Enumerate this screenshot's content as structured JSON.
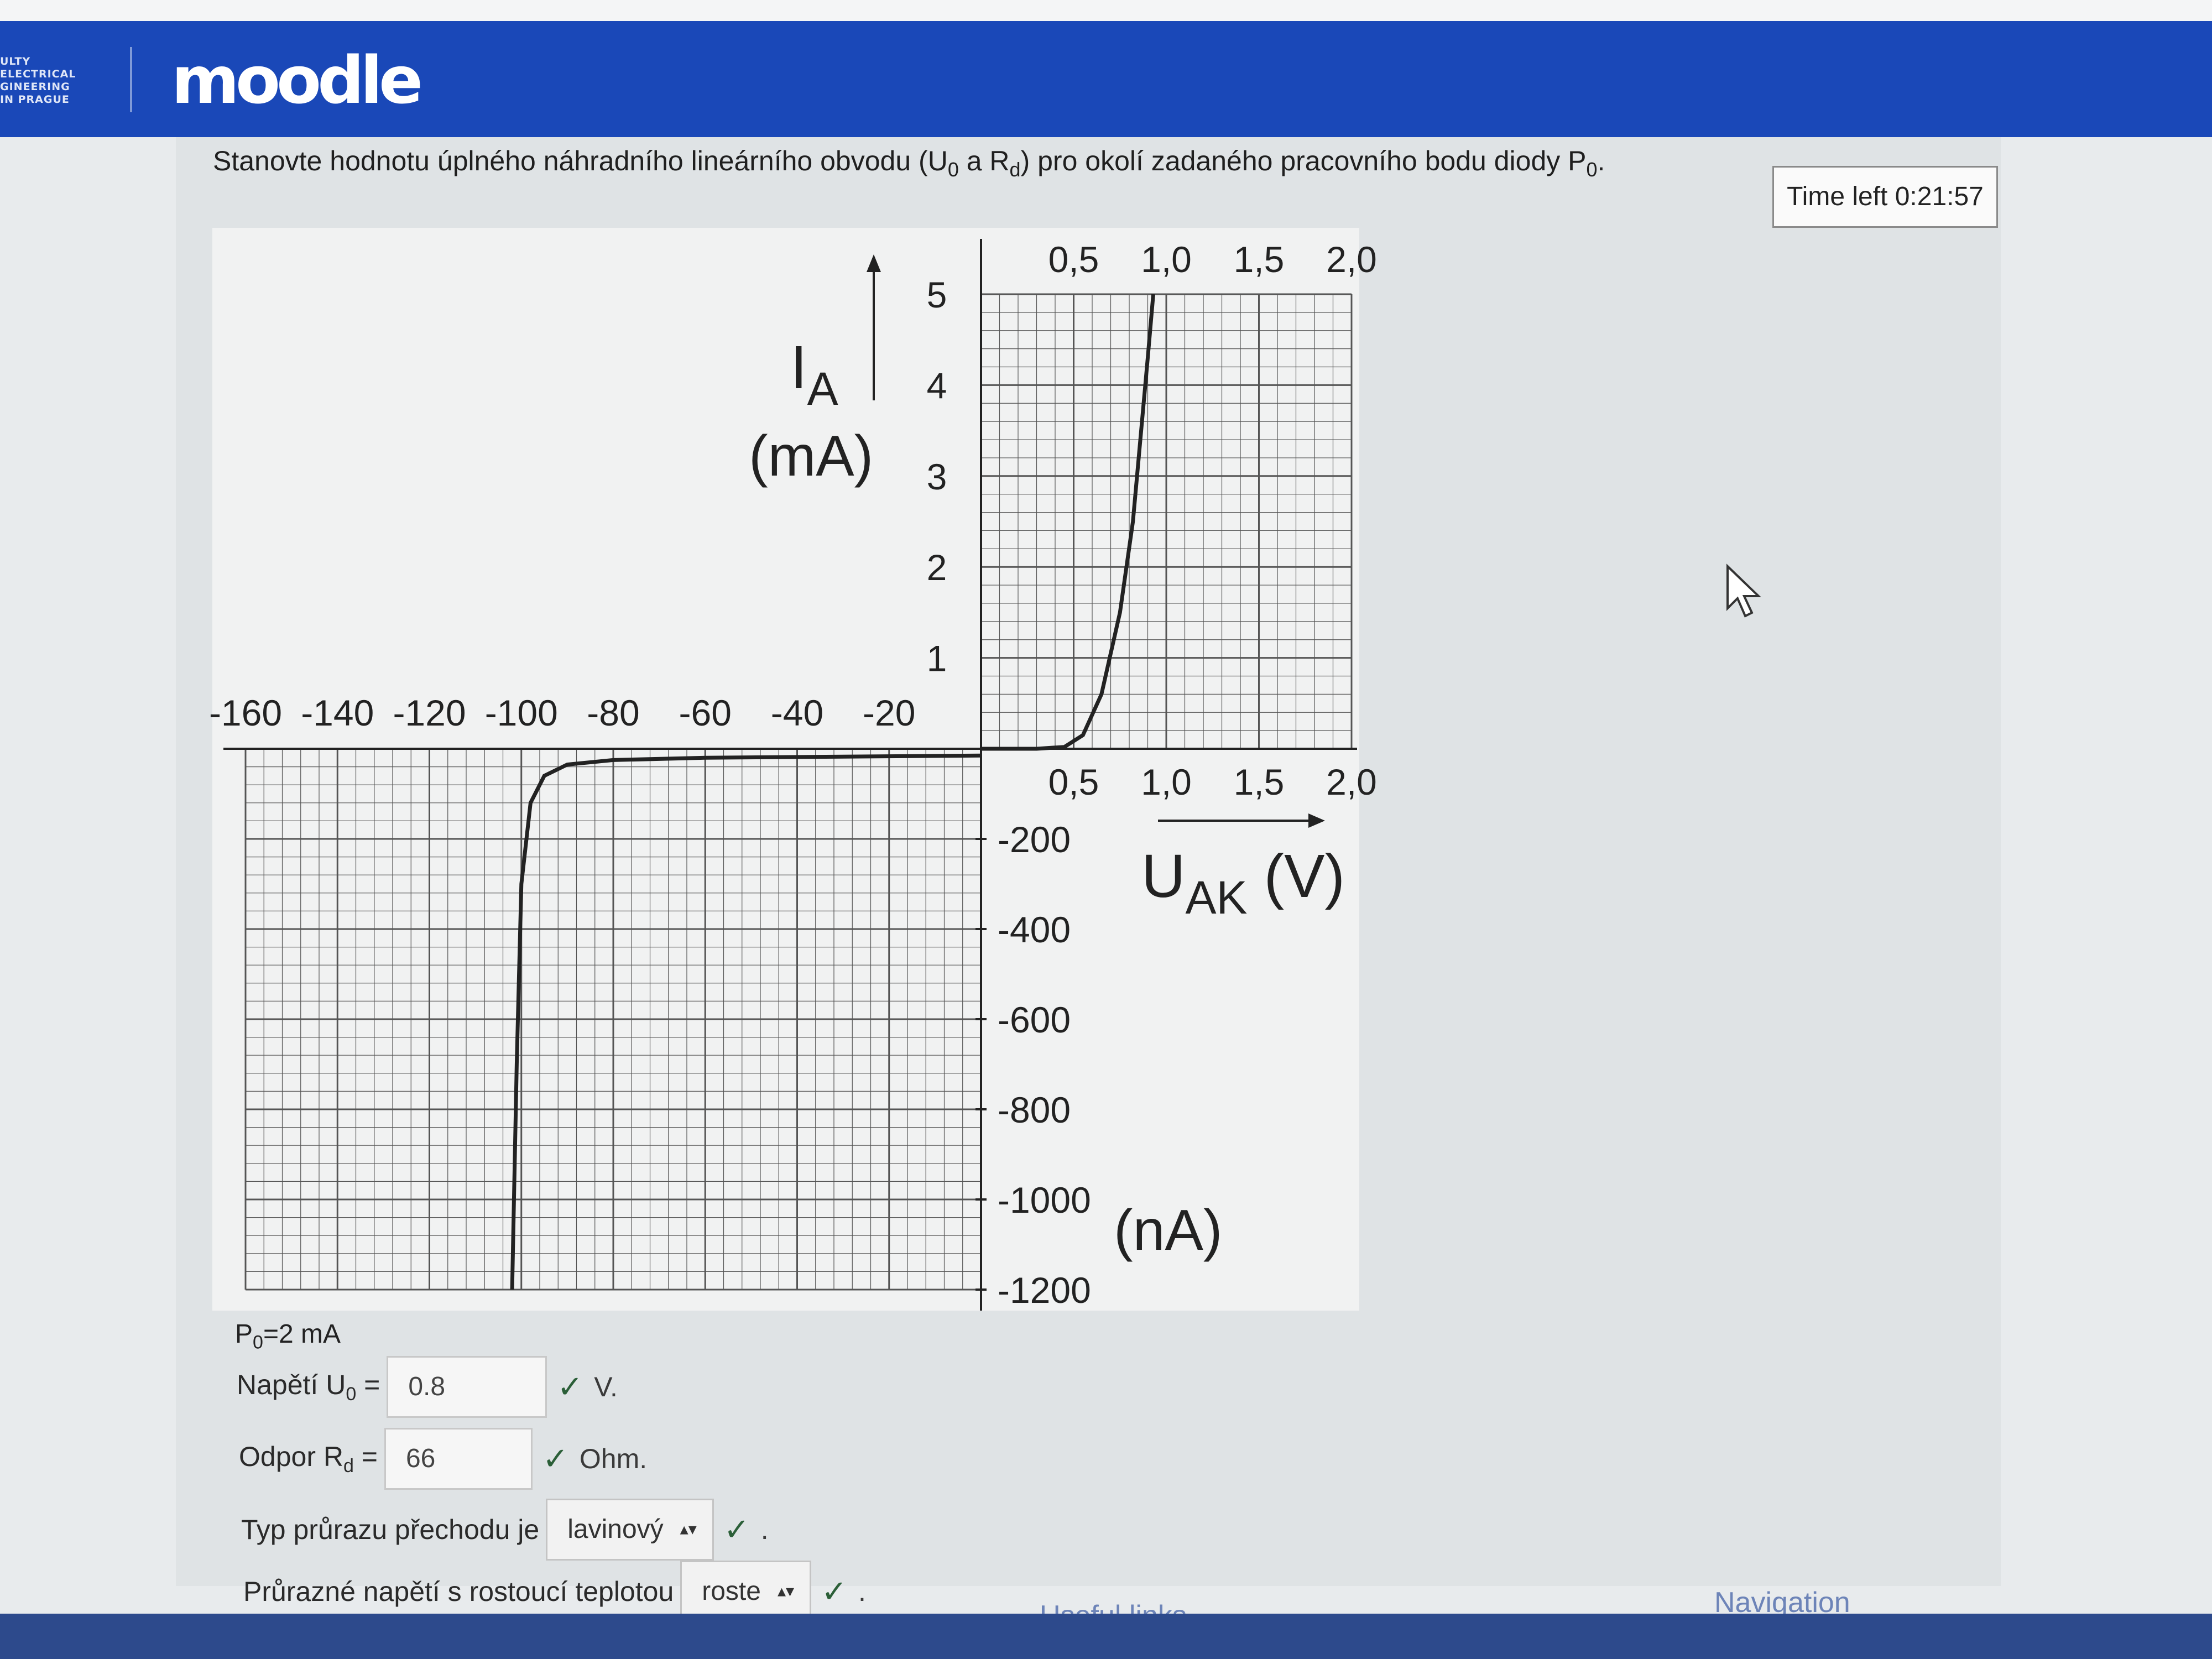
{
  "header": {
    "faculty_lines": [
      "ULTY",
      "ELECTRICAL",
      "GINEERING",
      "IN PRAGUE"
    ],
    "logo_text": "moodle"
  },
  "question": {
    "text_main": "Stanovte hodnotu úplného náhradního lineárního obvodu (U",
    "u_sub": "0",
    "text_mid": " a R",
    "r_sub": "d",
    "text_end": ") pro okolí zadaného pracovního bodu diody P",
    "p_sub": "0",
    "text_tail": "."
  },
  "timer": {
    "label": "Time left 0:21:57"
  },
  "chart_data": {
    "type": "line",
    "title": "",
    "y_label_forward_main": "I",
    "y_label_forward_sub": "A",
    "y_label_forward_unit": "(mA)",
    "y_label_reverse_unit": "(nA)",
    "x_label_main": "U",
    "x_label_sub": "AK",
    "x_label_unit": "(V)",
    "forward_x_ticks": [
      "0,5",
      "1,0",
      "1,5",
      "2,0"
    ],
    "forward_y_ticks": [
      "1",
      "2",
      "3",
      "4",
      "5"
    ],
    "reverse_x_ticks": [
      "-160",
      "-140",
      "-120",
      "-100",
      "-80",
      "-60",
      "-40",
      "-20"
    ],
    "reverse_y_ticks": [
      "-200",
      "-400",
      "-600",
      "-800",
      "-1000",
      "-1200"
    ],
    "forward_xlim": [
      0,
      2.0
    ],
    "forward_ylim": [
      0,
      5
    ],
    "reverse_xlim": [
      -160,
      0
    ],
    "reverse_ylim": [
      -1200,
      0
    ],
    "grid": true,
    "forward_series": {
      "x_unit": "V",
      "y_unit": "mA",
      "x": [
        0.0,
        0.3,
        0.45,
        0.55,
        0.65,
        0.75,
        0.82,
        0.86,
        0.9,
        0.93
      ],
      "y": [
        0.0,
        0.0,
        0.02,
        0.15,
        0.6,
        1.5,
        2.5,
        3.4,
        4.3,
        5.0
      ]
    },
    "reverse_series": {
      "x_unit": "V",
      "y_unit": "nA",
      "x": [
        0,
        -60,
        -80,
        -90,
        -95,
        -98,
        -100,
        -101,
        -102
      ],
      "y": [
        -15,
        -20,
        -25,
        -35,
        -60,
        -120,
        -300,
        -700,
        -1200
      ]
    }
  },
  "form": {
    "p_note_main": "P",
    "p_note_sub": "0",
    "p_note_value": "=2 mA",
    "voltage": {
      "label": "Napětí U",
      "label_sub": "0",
      "label_eq": " =",
      "value": "0.8",
      "unit": "V."
    },
    "resistance": {
      "label": "Odpor R",
      "label_sub": "d",
      "label_eq": " =",
      "value": "66",
      "unit": "Ohm."
    },
    "breakdown_type": {
      "label": "Typ průrazu přechodu je",
      "selected": "lavinový",
      "tail": "."
    },
    "breakdown_temp": {
      "label": "Průrazné napětí s rostoucí teplotou",
      "selected": "roste",
      "tail": "."
    },
    "check_symbol": "✓",
    "select_arrows": "▴▾"
  },
  "footer": {
    "useful_links": "Useful links",
    "navigation": "Navigation"
  },
  "colors": {
    "navbar": "#1a48b8",
    "check": "#2b5f38",
    "grid": "#555555"
  }
}
